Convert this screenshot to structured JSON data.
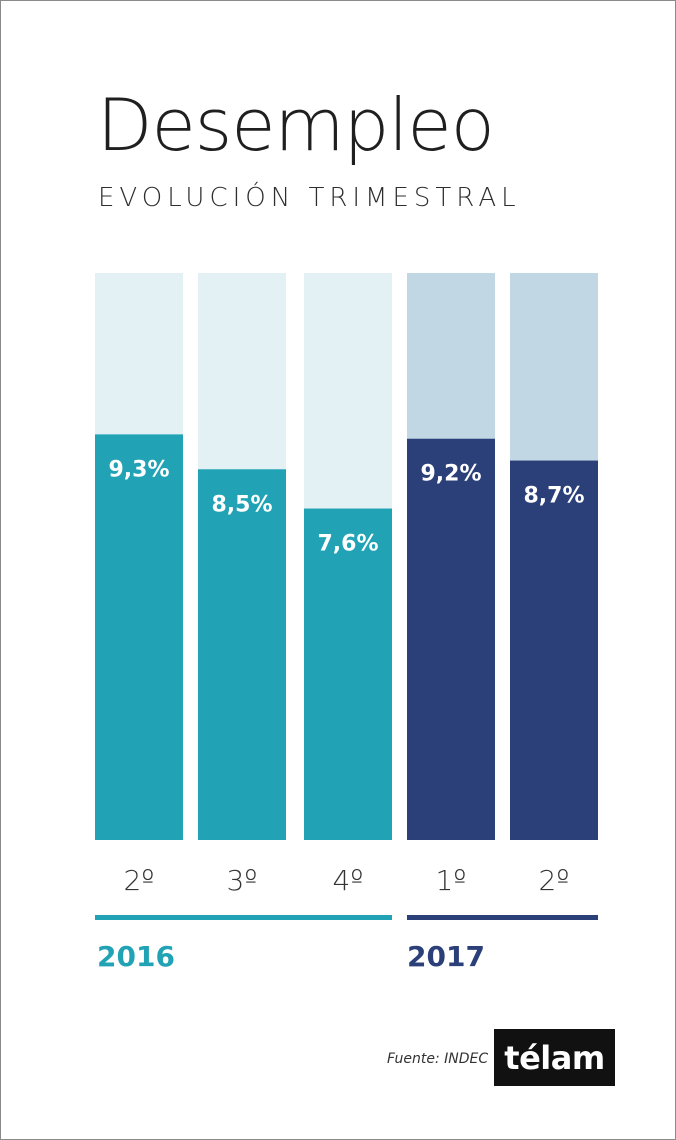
{
  "title": "Desempleo",
  "subtitle": "EVOLUCIÓN TRIMESTRAL",
  "source": "Fuente: INDEC",
  "logo": "télam",
  "colors": {
    "bar_2016": "#21a3b5",
    "bg_2016": "#e3f1f5",
    "bar_2017": "#2b3f78",
    "bg_2017": "#c2d7e4"
  },
  "chart_data": {
    "type": "bar",
    "title": "Desempleo",
    "subtitle": "EVOLUCIÓN TRIMESTRAL",
    "categories": [
      "2º",
      "3º",
      "4º",
      "1º",
      "2º"
    ],
    "groups": [
      {
        "year": "2016",
        "categories": [
          "2º",
          "3º",
          "4º"
        ]
      },
      {
        "year": "2017",
        "categories": [
          "1º",
          "2º"
        ]
      }
    ],
    "values": [
      9.3,
      8.5,
      7.6,
      9.2,
      8.7
    ],
    "value_labels": [
      "9,3%",
      "8,5%",
      "7,6%",
      "9,2%",
      "8,7%"
    ],
    "year_of_bar": [
      "2016",
      "2016",
      "2016",
      "2017",
      "2017"
    ],
    "xlabel": "",
    "ylabel": "",
    "grid": false,
    "legend": "none"
  }
}
